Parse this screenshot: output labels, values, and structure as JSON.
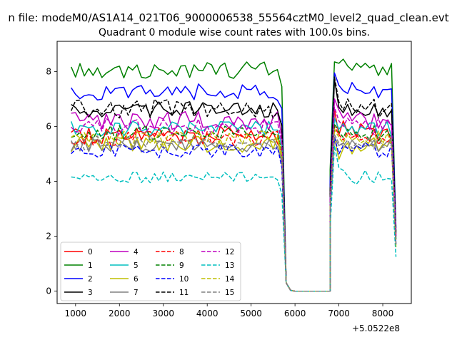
{
  "chart_data": {
    "type": "line",
    "suptitle": "n file: modeM0/AS1A14_021T06_9000006538_55564cztM0_level2_quad_clean.evt",
    "title": "Quadrant 0 module wise count rates with 100.0s bins.",
    "xlabel": "",
    "ylabel": "",
    "x_offset_label": "+5.0522e8",
    "xlim": [
      580,
      8650
    ],
    "ylim": [
      -0.45,
      9.1
    ],
    "xticks": [
      1000,
      2000,
      3000,
      4000,
      5000,
      6000,
      7000,
      8000
    ],
    "yticks": [
      0,
      2,
      4,
      6,
      8
    ],
    "legend_position": "lower-left",
    "gap_segment": {
      "x": [
        5700,
        5800,
        5900,
        6000,
        6100,
        6200,
        6300,
        6400,
        6500,
        6600,
        6700,
        6800
      ]
    },
    "series": [
      {
        "name": "0",
        "color": "#ff0000",
        "dash": "solid",
        "base": 5.7,
        "amp": 0.35,
        "high": [
          6.6,
          5.7,
          6.2,
          5.8,
          6.0,
          5.6,
          6.1,
          5.9
        ],
        "end": 2.0
      },
      {
        "name": "1",
        "color": "#008000",
        "dash": "solid",
        "base": 8.05,
        "amp": 0.3,
        "high": [
          8.35,
          8.3,
          8.45,
          8.2,
          8.05,
          8.3,
          8.15,
          8.3
        ],
        "end": 2.2
      },
      {
        "name": "2",
        "color": "#0000ff",
        "dash": "solid",
        "base": 7.25,
        "amp": 0.3,
        "high": [
          7.95,
          7.5,
          7.3,
          7.2,
          7.6,
          7.35,
          7.3,
          7.2
        ],
        "end": 2.3
      },
      {
        "name": "3",
        "color": "#000000",
        "dash": "solid",
        "base": 6.6,
        "amp": 0.3,
        "high": [
          7.7,
          6.7,
          6.5,
          6.8,
          6.4,
          6.6,
          6.5,
          6.4
        ],
        "end": 2.1
      },
      {
        "name": "4",
        "color": "#bf00bf",
        "dash": "solid",
        "base": 6.2,
        "amp": 0.35,
        "high": [
          7.0,
          6.6,
          6.3,
          6.5,
          6.2,
          6.4,
          6.5,
          6.3
        ],
        "end": 2.0
      },
      {
        "name": "5",
        "color": "#00bfbf",
        "dash": "solid",
        "base": 5.9,
        "amp": 0.3,
        "high": [
          6.3,
          5.9,
          6.1,
          5.8,
          6.0,
          5.7,
          6.0,
          5.9
        ],
        "end": 1.9
      },
      {
        "name": "6",
        "color": "#bfbf00",
        "dash": "solid",
        "base": 5.35,
        "amp": 0.3,
        "high": [
          5.6,
          4.8,
          5.2,
          5.4,
          5.0,
          5.3,
          5.1,
          5.2
        ],
        "end": 1.6
      },
      {
        "name": "7",
        "color": "#808080",
        "dash": "solid",
        "base": 5.3,
        "amp": 0.25,
        "high": [
          5.6,
          5.3,
          5.4,
          5.2,
          5.5,
          5.3,
          5.2,
          5.3
        ],
        "end": 1.7
      },
      {
        "name": "8",
        "color": "#ff0000",
        "dash": "dashed",
        "base": 5.6,
        "amp": 0.3,
        "high": [
          6.0,
          5.7,
          5.5,
          5.8,
          5.6,
          5.7,
          5.5,
          5.6
        ],
        "end": 1.8
      },
      {
        "name": "9",
        "color": "#008000",
        "dash": "dashed",
        "base": 5.75,
        "amp": 0.3,
        "high": [
          6.1,
          5.8,
          5.6,
          5.9,
          5.7,
          5.8,
          5.6,
          5.7
        ],
        "end": 1.9
      },
      {
        "name": "10",
        "color": "#0000ff",
        "dash": "dashed",
        "base": 5.1,
        "amp": 0.25,
        "high": [
          5.6,
          5.0,
          5.3,
          5.2,
          5.1,
          5.3,
          5.2,
          5.4
        ],
        "end": 1.7
      },
      {
        "name": "11",
        "color": "#000000",
        "dash": "dashed",
        "base": 6.65,
        "amp": 0.35,
        "high": [
          7.8,
          6.9,
          6.6,
          7.0,
          6.7,
          6.5,
          6.8,
          6.6
        ],
        "end": 2.1
      },
      {
        "name": "12",
        "color": "#bf00bf",
        "dash": "dashed",
        "base": 6.0,
        "amp": 0.3,
        "high": [
          6.7,
          6.2,
          6.0,
          6.3,
          6.1,
          6.2,
          6.0,
          6.2
        ],
        "end": 2.0
      },
      {
        "name": "13",
        "color": "#00bfbf",
        "dash": "dashed",
        "base": 4.15,
        "amp": 0.2,
        "high": [
          5.3,
          4.5,
          4.4,
          4.2,
          4.0,
          3.9,
          4.1,
          4.4
        ],
        "end": 1.25
      },
      {
        "name": "14",
        "color": "#bfbf00",
        "dash": "dashed",
        "base": 5.55,
        "amp": 0.3,
        "high": [
          5.9,
          5.6,
          5.4,
          5.7,
          5.5,
          5.6,
          5.4,
          5.5
        ],
        "end": 1.6
      },
      {
        "name": "15",
        "color": "#808080",
        "dash": "dashed",
        "base": 5.4,
        "amp": 0.25,
        "high": [
          5.7,
          5.4,
          5.3,
          5.5,
          5.2,
          5.4,
          5.3,
          5.4
        ],
        "end": 1.7
      }
    ]
  }
}
